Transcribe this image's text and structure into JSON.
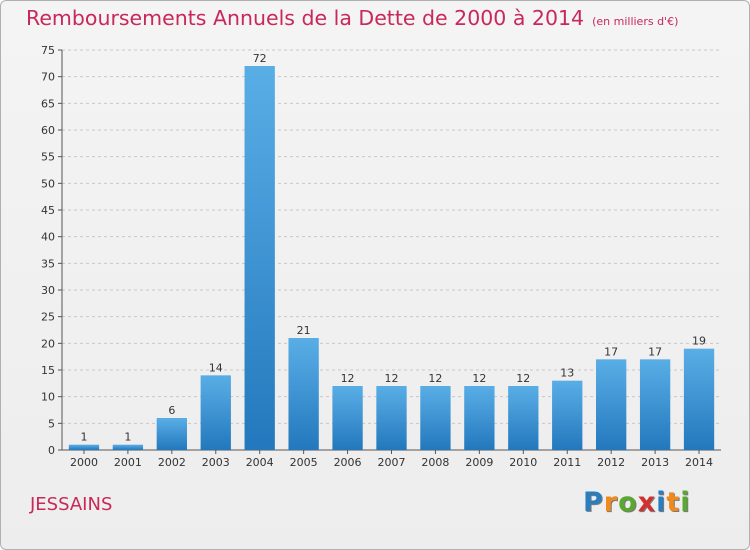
{
  "title": "Remboursements Annuels de la Dette de 2000 à 2014",
  "unit_note": "(en milliers d'€)",
  "town": "JESSAINS",
  "logo": {
    "letters": [
      "P",
      "r",
      "o",
      "x",
      "i",
      "t",
      "i"
    ],
    "colors": [
      "#2a7ec0",
      "#f08a1c",
      "#5aa832",
      "#d2322d",
      "#2a7ec0",
      "#f08a1c",
      "#5aa832"
    ]
  },
  "colors": {
    "bar_light": "#5aaee6",
    "bar_dark": "#2378bd",
    "title": "#c8285a",
    "grid": "#c8c8c8"
  },
  "chart_data": {
    "type": "bar",
    "title": "Remboursements Annuels de la Dette de 2000 à 2014",
    "xlabel": "",
    "ylabel": "",
    "ylim": [
      0,
      75
    ],
    "yticks": [
      0,
      5,
      10,
      15,
      20,
      25,
      30,
      35,
      40,
      45,
      50,
      55,
      60,
      65,
      70,
      75
    ],
    "categories": [
      "2000",
      "2001",
      "2002",
      "2003",
      "2004",
      "2005",
      "2006",
      "2007",
      "2008",
      "2009",
      "2010",
      "2011",
      "2012",
      "2013",
      "2014"
    ],
    "values": [
      1,
      1,
      6,
      14,
      72,
      21,
      12,
      12,
      12,
      12,
      12,
      13,
      17,
      17,
      19
    ],
    "grid": true
  }
}
